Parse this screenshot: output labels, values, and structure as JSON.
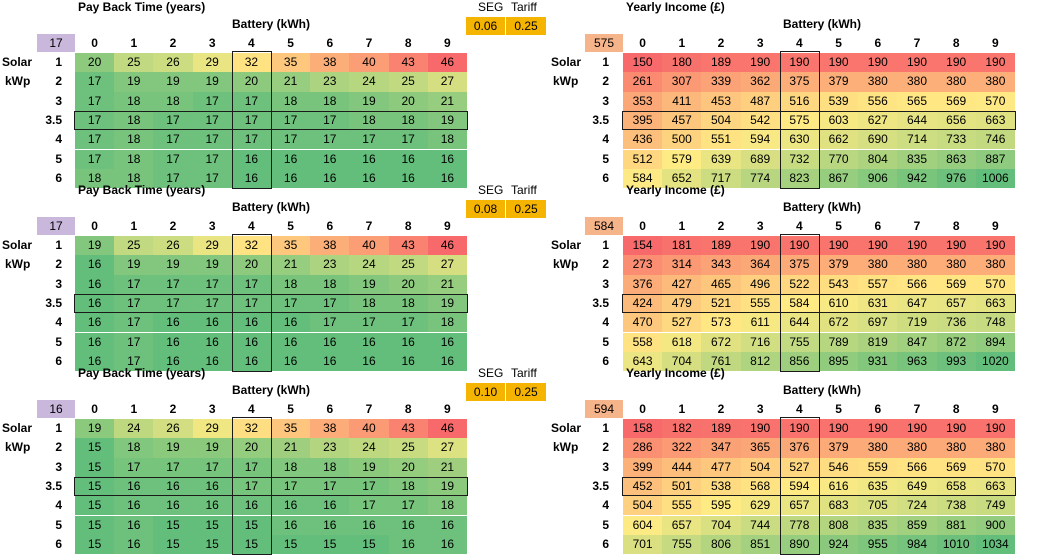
{
  "blocks": [
    {
      "seg_label": "SEG",
      "tariff_label": "Tariff",
      "seg": "0.06",
      "tariff": "0.25",
      "left": {
        "title": "Pay Back Time (years)",
        "battery_label": "Battery (kWh)",
        "corner": "17",
        "cols": [
          "0",
          "1",
          "2",
          "3",
          "4",
          "5",
          "6",
          "7",
          "8",
          "9"
        ],
        "rows": [
          "1",
          "2",
          "3",
          "3.5",
          "4",
          "5",
          "6"
        ],
        "values": [
          [
            20,
            25,
            26,
            29,
            32,
            35,
            38,
            40,
            43,
            46
          ],
          [
            17,
            19,
            19,
            19,
            20,
            21,
            23,
            24,
            25,
            27
          ],
          [
            17,
            18,
            18,
            17,
            17,
            18,
            18,
            19,
            20,
            21
          ],
          [
            17,
            18,
            17,
            17,
            17,
            17,
            17,
            18,
            18,
            19
          ],
          [
            17,
            18,
            17,
            17,
            17,
            17,
            17,
            17,
            17,
            18
          ],
          [
            17,
            18,
            17,
            17,
            16,
            16,
            16,
            16,
            16,
            16
          ],
          [
            18,
            18,
            17,
            17,
            16,
            16,
            16,
            16,
            16,
            16
          ]
        ]
      },
      "right": {
        "title": "Yearly Income (£)",
        "battery_label": "Battery (kWh)",
        "corner": "575",
        "cols": [
          "0",
          "1",
          "2",
          "3",
          "4",
          "5",
          "6",
          "7",
          "8",
          "9"
        ],
        "rows": [
          "1",
          "2",
          "3",
          "3.5",
          "4",
          "5",
          "6"
        ],
        "values": [
          [
            150,
            180,
            189,
            190,
            190,
            190,
            190,
            190,
            190,
            190
          ],
          [
            261,
            307,
            339,
            362,
            375,
            379,
            380,
            380,
            380,
            380
          ],
          [
            353,
            411,
            453,
            487,
            516,
            539,
            556,
            565,
            569,
            570
          ],
          [
            395,
            457,
            504,
            542,
            575,
            603,
            627,
            644,
            656,
            663
          ],
          [
            436,
            500,
            551,
            594,
            630,
            662,
            690,
            714,
            733,
            746
          ],
          [
            512,
            579,
            639,
            689,
            732,
            770,
            804,
            835,
            863,
            887
          ],
          [
            584,
            652,
            717,
            774,
            823,
            867,
            906,
            942,
            976,
            1006
          ]
        ]
      }
    },
    {
      "seg_label": "SEG",
      "tariff_label": "Tariff",
      "seg": "0.08",
      "tariff": "0.25",
      "left": {
        "title": "Pay Back Time (years)",
        "battery_label": "Battery (kWh)",
        "corner": "17",
        "cols": [
          "0",
          "1",
          "2",
          "3",
          "4",
          "5",
          "6",
          "7",
          "8",
          "9"
        ],
        "rows": [
          "1",
          "2",
          "3",
          "3.5",
          "4",
          "5",
          "6"
        ],
        "values": [
          [
            19,
            25,
            26,
            29,
            32,
            35,
            38,
            40,
            43,
            46
          ],
          [
            16,
            19,
            19,
            19,
            20,
            21,
            23,
            24,
            25,
            27
          ],
          [
            16,
            17,
            17,
            17,
            17,
            18,
            18,
            19,
            20,
            21
          ],
          [
            16,
            17,
            17,
            17,
            17,
            17,
            17,
            18,
            18,
            19
          ],
          [
            16,
            17,
            16,
            16,
            16,
            16,
            17,
            17,
            17,
            18
          ],
          [
            16,
            17,
            16,
            16,
            16,
            16,
            16,
            16,
            16,
            16
          ],
          [
            16,
            17,
            16,
            16,
            16,
            16,
            16,
            16,
            16,
            16
          ]
        ]
      },
      "right": {
        "title": "Yearly Income (£)",
        "battery_label": "Battery (kWh)",
        "corner": "584",
        "cols": [
          "0",
          "1",
          "2",
          "3",
          "4",
          "5",
          "6",
          "7",
          "8",
          "9"
        ],
        "rows": [
          "1",
          "2",
          "3",
          "3.5",
          "4",
          "5",
          "6"
        ],
        "values": [
          [
            154,
            181,
            189,
            190,
            190,
            190,
            190,
            190,
            190,
            190
          ],
          [
            273,
            314,
            343,
            364,
            375,
            379,
            380,
            380,
            380,
            380
          ],
          [
            376,
            427,
            465,
            496,
            522,
            543,
            557,
            566,
            569,
            570
          ],
          [
            424,
            479,
            521,
            555,
            584,
            610,
            631,
            647,
            657,
            663
          ],
          [
            470,
            527,
            573,
            611,
            644,
            672,
            697,
            719,
            736,
            748
          ],
          [
            558,
            618,
            672,
            716,
            755,
            789,
            819,
            847,
            872,
            894
          ],
          [
            643,
            704,
            761,
            812,
            856,
            895,
            931,
            963,
            993,
            1020
          ]
        ]
      }
    },
    {
      "seg_label": "SEG",
      "tariff_label": "Tariff",
      "seg": "0.10",
      "tariff": "0.25",
      "left": {
        "title": "Pay Back Time (years)",
        "battery_label": "Battery (kWh)",
        "corner": "16",
        "cols": [
          "0",
          "1",
          "2",
          "3",
          "4",
          "5",
          "6",
          "7",
          "8",
          "9"
        ],
        "rows": [
          "1",
          "2",
          "3",
          "3.5",
          "4",
          "5",
          "6"
        ],
        "values": [
          [
            19,
            24,
            26,
            29,
            32,
            35,
            38,
            40,
            43,
            46
          ],
          [
            15,
            18,
            19,
            19,
            20,
            21,
            23,
            24,
            25,
            27
          ],
          [
            15,
            17,
            17,
            17,
            17,
            18,
            18,
            19,
            20,
            21
          ],
          [
            15,
            16,
            16,
            16,
            17,
            17,
            17,
            17,
            18,
            19
          ],
          [
            15,
            16,
            16,
            16,
            16,
            16,
            16,
            17,
            17,
            18
          ],
          [
            15,
            16,
            15,
            15,
            15,
            16,
            16,
            16,
            16,
            16
          ],
          [
            15,
            16,
            15,
            15,
            15,
            15,
            15,
            15,
            16,
            16
          ]
        ]
      },
      "right": {
        "title": "Yearly Income (£)",
        "battery_label": "Battery (kWh)",
        "corner": "594",
        "cols": [
          "0",
          "1",
          "2",
          "3",
          "4",
          "5",
          "6",
          "7",
          "8",
          "9"
        ],
        "rows": [
          "1",
          "2",
          "3",
          "3.5",
          "4",
          "5",
          "6"
        ],
        "values": [
          [
            158,
            182,
            189,
            190,
            190,
            190,
            190,
            190,
            190,
            190
          ],
          [
            286,
            322,
            347,
            365,
            376,
            379,
            380,
            380,
            380,
            380
          ],
          [
            399,
            444,
            477,
            504,
            527,
            546,
            559,
            566,
            569,
            570
          ],
          [
            452,
            501,
            538,
            568,
            594,
            616,
            635,
            649,
            658,
            663
          ],
          [
            504,
            555,
            595,
            629,
            657,
            683,
            705,
            724,
            738,
            749
          ],
          [
            604,
            657,
            704,
            744,
            778,
            808,
            835,
            859,
            881,
            900
          ],
          [
            701,
            755,
            806,
            851,
            890,
            924,
            955,
            984,
            1010,
            1034
          ]
        ]
      }
    }
  ],
  "labels": {
    "solar": "Solar",
    "kwp": "kWp"
  },
  "colors": {
    "corner_left": "#c9b8dc",
    "corner_right": "#f6b48a",
    "seg_box": "#f5b400",
    "scale_low": "#63be7b",
    "scale_mid": "#ffeb84",
    "scale_high": "#f8696b"
  }
}
